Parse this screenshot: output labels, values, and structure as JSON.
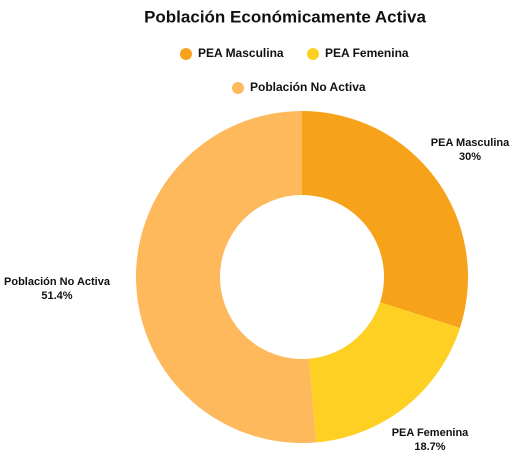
{
  "chart_data": {
    "type": "pie",
    "title": "Población Económicamente Activa",
    "categories": [
      "PEA Masculina",
      "PEA Femenina",
      "Población No Activa"
    ],
    "values": [
      30,
      18.7,
      51.4
    ],
    "value_labels": [
      "30%",
      "18.7%",
      "51.4%"
    ],
    "colors": [
      "#F7A21B",
      "#FDD023",
      "#FDB95C"
    ],
    "donut": true,
    "legend": "top"
  }
}
